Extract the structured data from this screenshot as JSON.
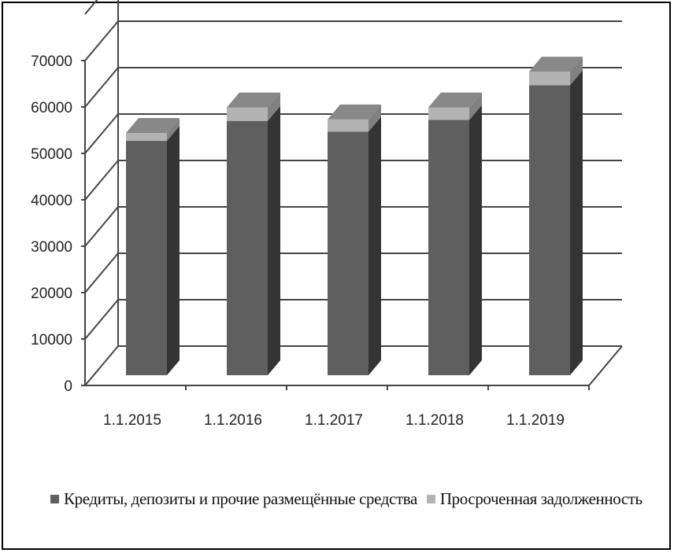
{
  "chart_data": {
    "type": "bar",
    "stacked": true,
    "three_d": true,
    "categories": [
      "1.1.2015",
      "1.1.2016",
      "1.1.2017",
      "1.1.2018",
      "1.1.2019"
    ],
    "series": [
      {
        "name": "Кредиты, депозиты и прочие размещённые  средства",
        "values": [
          50500,
          54800,
          52500,
          55000,
          62500
        ],
        "color": "#5f5f5f"
      },
      {
        "name": "Просроченная задолженность",
        "values": [
          1700,
          2900,
          2600,
          2700,
          2900
        ],
        "color": "#b3b3b3"
      }
    ],
    "y_ticks": [
      "0",
      "10000",
      "20000",
      "30000",
      "40000",
      "50000",
      "60000",
      "70000"
    ],
    "ylim": [
      0,
      80000
    ],
    "grid": true,
    "legend_position": "bottom"
  }
}
